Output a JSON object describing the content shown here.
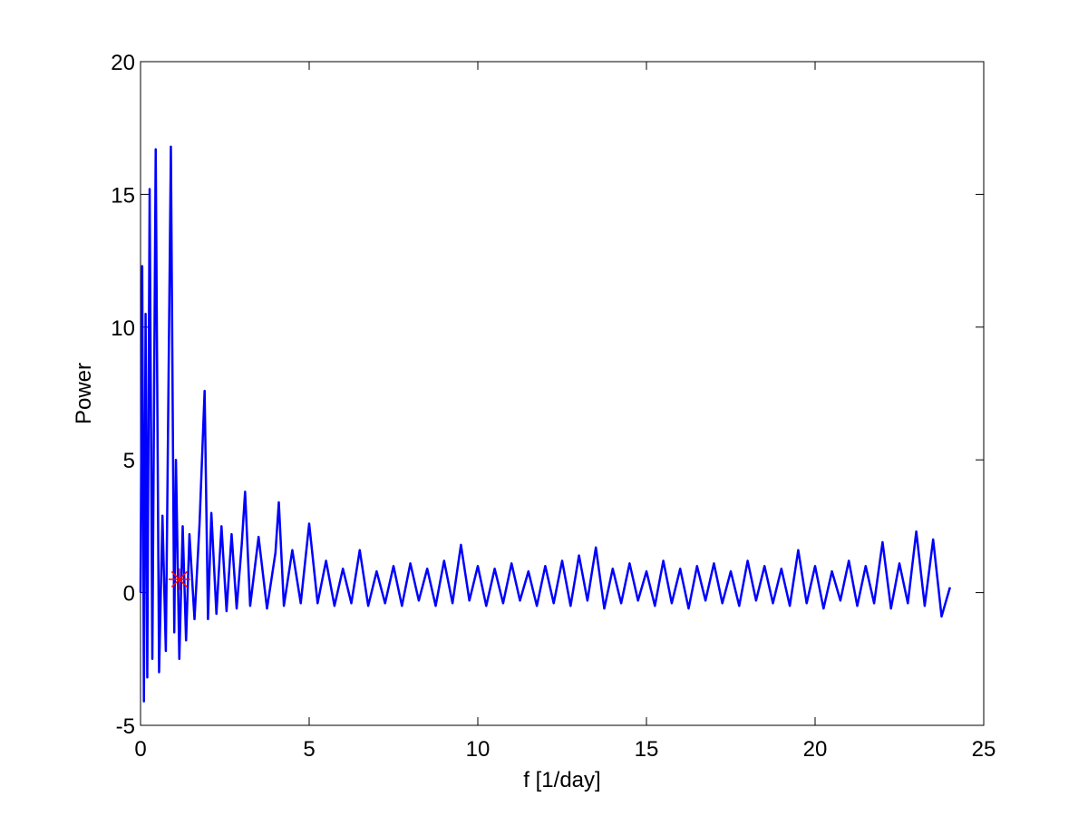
{
  "chart_data": {
    "type": "line",
    "xlabel": "f [1/day]",
    "ylabel": "Power",
    "x": [
      0,
      0.05,
      0.1,
      0.15,
      0.2,
      0.27,
      0.35,
      0.45,
      0.55,
      0.65,
      0.75,
      0.9,
      1.0,
      1.05,
      1.15,
      1.25,
      1.35,
      1.45,
      1.6,
      1.75,
      1.9,
      2.0,
      2.1,
      2.25,
      2.4,
      2.55,
      2.7,
      2.85,
      3.0,
      3.1,
      3.25,
      3.5,
      3.75,
      4.0,
      4.1,
      4.25,
      4.5,
      4.75,
      5.0,
      5.25,
      5.5,
      5.75,
      6.0,
      6.25,
      6.5,
      6.75,
      7.0,
      7.25,
      7.5,
      7.75,
      8.0,
      8.25,
      8.5,
      8.75,
      9.0,
      9.25,
      9.5,
      9.75,
      10.0,
      10.25,
      10.5,
      10.75,
      11.0,
      11.25,
      11.5,
      11.75,
      12.0,
      12.25,
      12.5,
      12.75,
      13.0,
      13.25,
      13.5,
      13.75,
      14.0,
      14.25,
      14.5,
      14.75,
      15.0,
      15.25,
      15.5,
      15.75,
      16.0,
      16.25,
      16.5,
      16.75,
      17.0,
      17.25,
      17.5,
      17.75,
      18.0,
      18.25,
      18.5,
      18.75,
      19.0,
      19.25,
      19.5,
      19.75,
      20.0,
      20.25,
      20.5,
      20.75,
      21.0,
      21.25,
      21.5,
      21.75,
      22.0,
      22.25,
      22.5,
      22.75,
      23.0,
      23.25,
      23.5,
      23.75,
      24.0
    ],
    "values": [
      0,
      12.3,
      -4.1,
      10.5,
      -3.2,
      15.2,
      -2.5,
      16.7,
      -3.0,
      2.9,
      -2.2,
      16.8,
      -1.5,
      5.0,
      -2.5,
      2.5,
      -1.8,
      2.2,
      -1.0,
      2.6,
      7.6,
      -1.0,
      3.0,
      -0.8,
      2.5,
      -0.7,
      2.2,
      -0.6,
      1.8,
      3.8,
      -0.5,
      2.1,
      -0.6,
      1.5,
      3.4,
      -0.5,
      1.6,
      -0.4,
      2.6,
      -0.4,
      1.2,
      -0.5,
      0.9,
      -0.4,
      1.6,
      -0.5,
      0.8,
      -0.4,
      1.0,
      -0.5,
      1.1,
      -0.3,
      0.9,
      -0.5,
      1.2,
      -0.4,
      1.8,
      -0.3,
      1.0,
      -0.5,
      0.9,
      -0.4,
      1.1,
      -0.3,
      0.8,
      -0.5,
      1.0,
      -0.4,
      1.2,
      -0.5,
      1.4,
      -0.3,
      1.7,
      -0.6,
      0.9,
      -0.4,
      1.1,
      -0.3,
      0.8,
      -0.5,
      1.2,
      -0.4,
      0.9,
      -0.6,
      1.0,
      -0.3,
      1.1,
      -0.4,
      0.8,
      -0.5,
      1.2,
      -0.3,
      1.0,
      -0.4,
      0.9,
      -0.5,
      1.6,
      -0.4,
      1.0,
      -0.6,
      0.8,
      -0.3,
      1.2,
      -0.5,
      1.0,
      -0.4,
      1.9,
      -0.6,
      1.1,
      -0.4,
      2.3,
      -0.5,
      2.0,
      -0.9,
      0.2
    ],
    "color": "#0000ff",
    "marker": {
      "x": 1.15,
      "y": 0.5,
      "color": "#ff0000"
    },
    "xlim": [
      0,
      25
    ],
    "xticks": [
      0,
      5,
      10,
      15,
      20,
      25
    ],
    "ylim": [
      -5,
      20
    ],
    "yticks": [
      -5,
      0,
      5,
      10,
      15,
      20
    ]
  }
}
